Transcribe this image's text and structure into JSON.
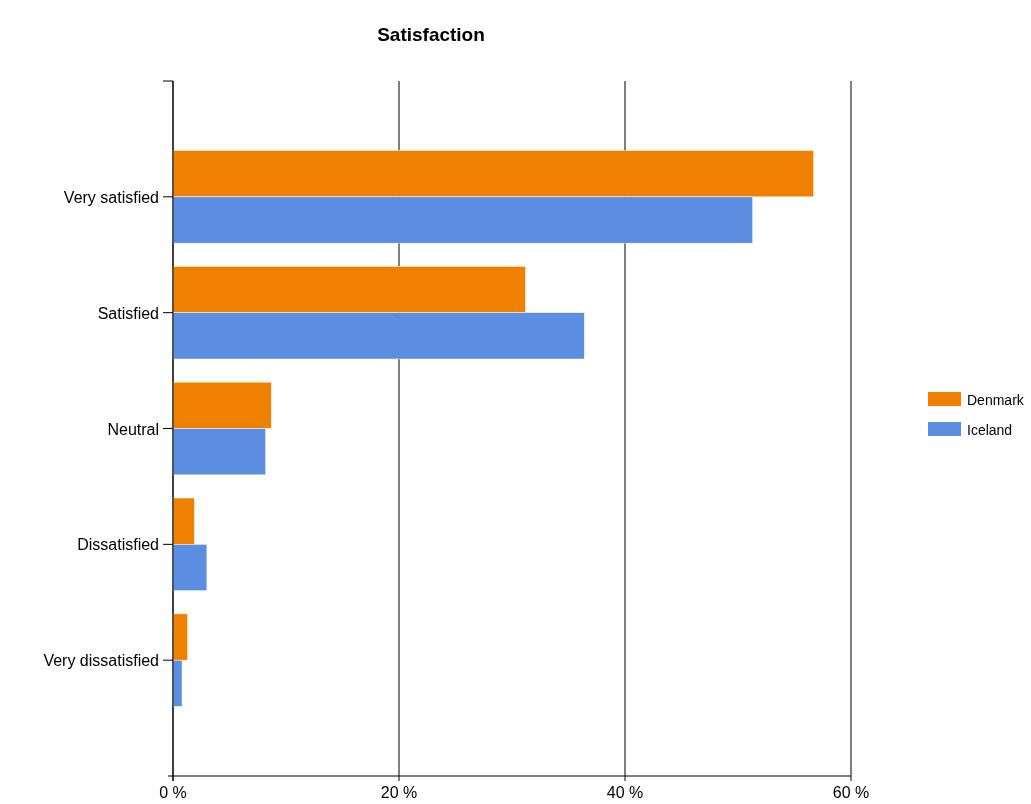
{
  "chart_data": {
    "type": "bar",
    "orientation": "horizontal",
    "title": "Satisfaction",
    "categories": [
      "Very satisfied",
      "Satisfied",
      "Neutral",
      "Dissatisfied",
      "Very dissatisfied"
    ],
    "series": [
      {
        "name": "Denmark",
        "color": "#f08000",
        "values": [
          56.7,
          31.2,
          8.7,
          1.9,
          1.3
        ]
      },
      {
        "name": "Iceland",
        "color": "#5b8de0",
        "values": [
          51.3,
          36.4,
          8.2,
          3.0,
          0.8
        ]
      }
    ],
    "xlim": [
      0,
      60
    ],
    "xticks": [
      {
        "value": 0,
        "label": "0 %"
      },
      {
        "value": 20,
        "label": "20 %"
      },
      {
        "value": 40,
        "label": "40 %"
      },
      {
        "value": 60,
        "label": "60 %"
      }
    ],
    "grid": "x",
    "legend": "right"
  }
}
